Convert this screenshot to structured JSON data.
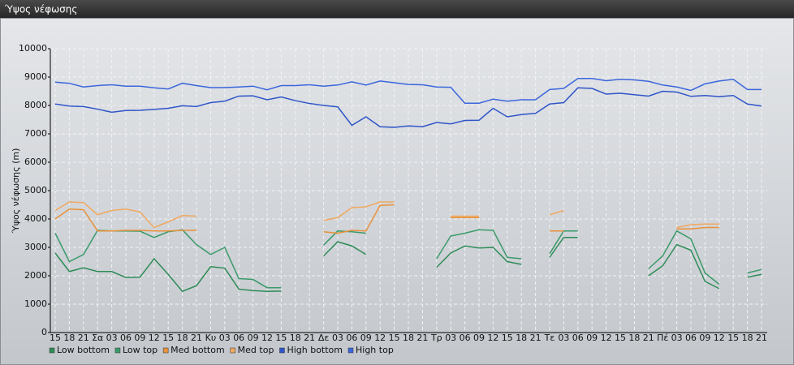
{
  "chart_data": {
    "type": "line",
    "title": "Ύψος νέφωσης",
    "y_label": "Ύψος νέφωσης (m)",
    "categories": [
      "15",
      "18",
      "21",
      "Σα",
      "03",
      "06",
      "09",
      "12",
      "15",
      "18",
      "21",
      "Κυ",
      "03",
      "06",
      "09",
      "12",
      "15",
      "18",
      "21",
      "Δε",
      "03",
      "06",
      "09",
      "12",
      "15",
      "18",
      "21",
      "Τρ",
      "03",
      "06",
      "09",
      "12",
      "15",
      "18",
      "21",
      "Τε",
      "03",
      "06",
      "09",
      "12",
      "15",
      "18",
      "21",
      "Πέ",
      "03",
      "06",
      "09",
      "12",
      "15",
      "18",
      "21"
    ],
    "ylim": [
      0,
      10000
    ],
    "yticks": [
      0,
      1000,
      2000,
      3000,
      4000,
      5000,
      6000,
      7000,
      8000,
      9000,
      10000
    ],
    "grid": true,
    "series": [
      {
        "name": "Low bottom",
        "color": "#2e8b57",
        "values": [
          2800,
          2150,
          2280,
          2150,
          2150,
          1940,
          1950,
          2600,
          2050,
          1450,
          1650,
          2320,
          2270,
          1530,
          1480,
          1450,
          1460,
          null,
          null,
          2700,
          3200,
          3050,
          2750,
          null,
          null,
          null,
          null,
          2300,
          2800,
          3050,
          2980,
          3000,
          2500,
          2400,
          null,
          2650,
          3350,
          3350,
          null,
          null,
          null,
          null,
          2000,
          2350,
          3100,
          2900,
          1800,
          1550,
          null,
          1950,
          2050
        ]
      },
      {
        "name": "Low top",
        "color": "#3a9a6a",
        "values": [
          3500,
          2500,
          2750,
          3600,
          3580,
          3580,
          3570,
          3350,
          3550,
          3620,
          3100,
          2750,
          3000,
          1900,
          1870,
          1580,
          1580,
          null,
          null,
          3080,
          3580,
          3550,
          3500,
          null,
          null,
          null,
          null,
          2600,
          3400,
          3500,
          3620,
          3600,
          2650,
          2600,
          null,
          2780,
          3580,
          3580,
          null,
          null,
          null,
          null,
          2250,
          2700,
          3580,
          3300,
          2100,
          1700,
          null,
          2100,
          2220
        ]
      },
      {
        "name": "Med bottom",
        "color": "#e8913a",
        "values": [
          4000,
          4350,
          4330,
          3580,
          3580,
          3600,
          3600,
          3580,
          3580,
          3600,
          3600,
          null,
          null,
          null,
          null,
          null,
          null,
          null,
          null,
          3550,
          3500,
          3600,
          3580,
          4480,
          4500,
          null,
          null,
          null,
          4050,
          4050,
          4050,
          null,
          null,
          null,
          null,
          3580,
          3580,
          null,
          null,
          null,
          null,
          null,
          null,
          null,
          3650,
          3650,
          3700,
          3700,
          null,
          null,
          null
        ]
      },
      {
        "name": "Med top",
        "color": "#f0a860",
        "values": [
          4300,
          4600,
          4580,
          4150,
          4300,
          4350,
          4250,
          3700,
          3900,
          4120,
          4100,
          null,
          null,
          null,
          null,
          null,
          null,
          null,
          null,
          3950,
          4050,
          4400,
          4430,
          4600,
          4600,
          null,
          null,
          null,
          4100,
          4100,
          4100,
          null,
          null,
          null,
          null,
          4150,
          4300,
          null,
          null,
          null,
          null,
          null,
          null,
          null,
          3700,
          3800,
          3820,
          3820,
          null,
          null,
          null
        ]
      },
      {
        "name": "High bottom",
        "color": "#2f55c8",
        "values": [
          8050,
          7980,
          7960,
          7870,
          7760,
          7820,
          7830,
          7860,
          7900,
          7990,
          7960,
          8100,
          8150,
          8330,
          8340,
          8200,
          8300,
          8170,
          8070,
          8000,
          7950,
          7300,
          7600,
          7250,
          7230,
          7280,
          7250,
          7400,
          7350,
          7470,
          7480,
          7900,
          7600,
          7680,
          7720,
          8050,
          8100,
          8620,
          8600,
          8400,
          8430,
          8380,
          8330,
          8500,
          8470,
          8320,
          8350,
          8310,
          8350,
          8050,
          7980
        ]
      },
      {
        "name": "High top",
        "color": "#3b66dc",
        "values": [
          8820,
          8780,
          8650,
          8700,
          8730,
          8680,
          8680,
          8620,
          8580,
          8780,
          8700,
          8630,
          8630,
          8650,
          8680,
          8550,
          8700,
          8700,
          8730,
          8680,
          8720,
          8830,
          8720,
          8860,
          8800,
          8740,
          8730,
          8650,
          8640,
          8080,
          8080,
          8220,
          8150,
          8200,
          8200,
          8560,
          8600,
          8950,
          8950,
          8870,
          8920,
          8900,
          8850,
          8720,
          8650,
          8530,
          8760,
          8860,
          8920,
          8560,
          8560
        ]
      }
    ]
  }
}
